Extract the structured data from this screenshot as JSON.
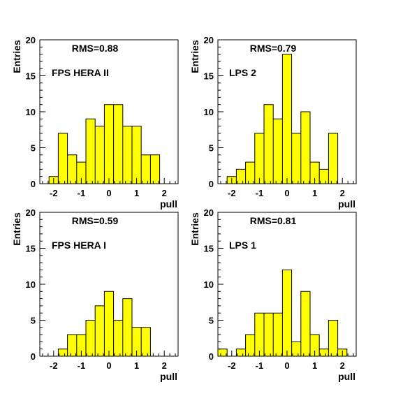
{
  "chart_data": [
    {
      "type": "bar",
      "title": "",
      "xlabel": "pull",
      "ylabel": "Entries",
      "rms_label": "RMS=0.88",
      "dataset_label": "FPS HERA II",
      "xlim": [
        -2.5,
        2.5
      ],
      "ylim": [
        0,
        20
      ],
      "x_ticks": [
        "-2",
        "-1",
        "0",
        "1",
        "2"
      ],
      "y_ticks": [
        "0",
        "5",
        "10",
        "15",
        "20"
      ],
      "bin_width": 0.333,
      "bin_lows": [
        -2.167,
        -1.833,
        -1.5,
        -1.167,
        -0.833,
        -0.5,
        -0.167,
        0.167,
        0.5,
        0.833,
        1.167,
        1.5
      ],
      "values": [
        1,
        7,
        4,
        3,
        9,
        8,
        11,
        11,
        8,
        8,
        4,
        4
      ],
      "fill_color": "#ffff00",
      "line_color": "#000000"
    },
    {
      "type": "bar",
      "title": "",
      "xlabel": "pull",
      "ylabel": "Entries",
      "rms_label": "RMS=0.79",
      "dataset_label": "LPS 2",
      "xlim": [
        -2.5,
        2.5
      ],
      "ylim": [
        0,
        20
      ],
      "x_ticks": [
        "-2",
        "-1",
        "0",
        "1",
        "2"
      ],
      "y_ticks": [
        "0",
        "5",
        "10",
        "15",
        "20"
      ],
      "bin_width": 0.333,
      "bin_lows": [
        -2.167,
        -1.833,
        -1.5,
        -1.167,
        -0.833,
        -0.5,
        -0.167,
        0.167,
        0.5,
        0.833,
        1.167,
        1.5
      ],
      "values": [
        1,
        2,
        3,
        7,
        11,
        9,
        18,
        7,
        10,
        3,
        2,
        7
      ],
      "fill_color": "#ffff00",
      "line_color": "#000000"
    },
    {
      "type": "bar",
      "title": "",
      "xlabel": "pull",
      "ylabel": "Entries",
      "rms_label": "RMS=0.59",
      "dataset_label": "FPS HERA I",
      "xlim": [
        -2.5,
        2.5
      ],
      "ylim": [
        0,
        20
      ],
      "x_ticks": [
        "-2",
        "-1",
        "0",
        "1",
        "2"
      ],
      "y_ticks": [
        "0",
        "5",
        "10",
        "15",
        "20"
      ],
      "bin_width": 0.333,
      "bin_lows": [
        -1.833,
        -1.5,
        -1.167,
        -0.833,
        -0.5,
        -0.167,
        0.167,
        0.5,
        0.833,
        1.167
      ],
      "values": [
        1,
        3,
        3,
        5,
        7,
        9,
        5,
        8,
        4,
        4
      ],
      "fill_color": "#ffff00",
      "line_color": "#000000"
    },
    {
      "type": "bar",
      "title": "",
      "xlabel": "pull",
      "ylabel": "Entries",
      "rms_label": "RMS=0.81",
      "dataset_label": "LPS 1",
      "xlim": [
        -2.5,
        2.5
      ],
      "ylim": [
        0,
        20
      ],
      "x_ticks": [
        "-2",
        "-1",
        "0",
        "1",
        "2"
      ],
      "y_ticks": [
        "0",
        "5",
        "10",
        "15",
        "20"
      ],
      "bin_width": 0.333,
      "bin_lows": [
        -2.5,
        -2.167,
        -1.833,
        -1.5,
        -1.167,
        -0.833,
        -0.5,
        -0.167,
        0.167,
        0.5,
        0.833,
        1.167,
        1.5,
        1.833
      ],
      "values": [
        1,
        0,
        1,
        3,
        6,
        6,
        6,
        12,
        2,
        9,
        3,
        1,
        5,
        1
      ],
      "fill_color": "#ffff00",
      "line_color": "#000000"
    }
  ]
}
